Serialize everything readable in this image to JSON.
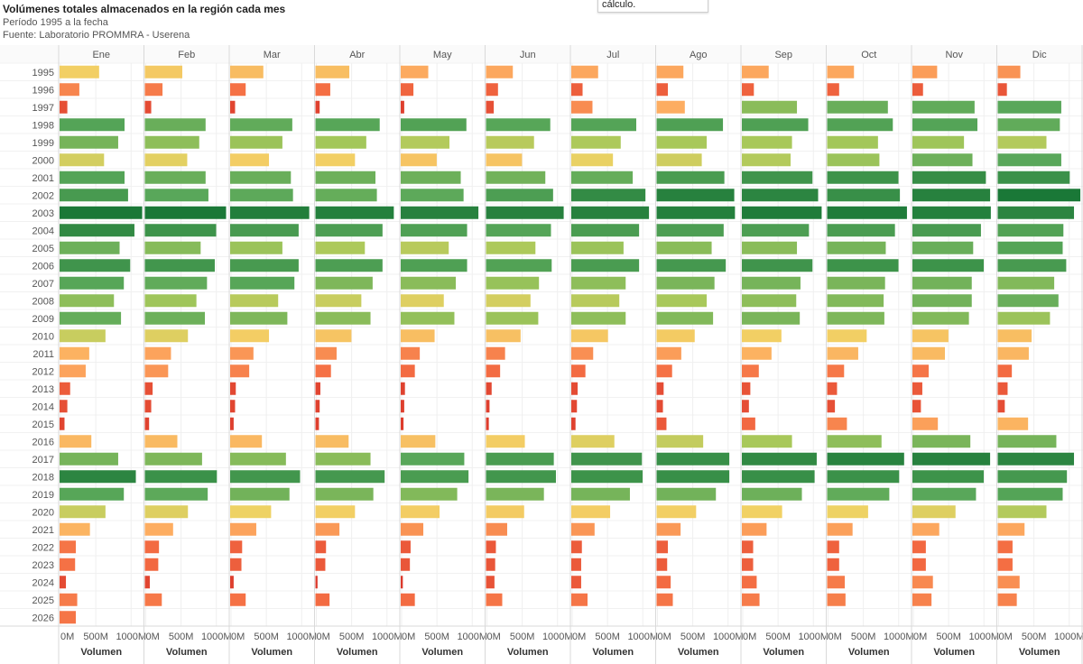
{
  "header": {
    "title": "Volúmenes totales almacenados en la región cada mes",
    "subtitle": "Período 1995 a la fecha",
    "source": "Fuente: Laboratorio PROMMRA - Userena"
  },
  "tooltip": {
    "text": "cálculo."
  },
  "chart_data": {
    "type": "bar",
    "orientation": "horizontal",
    "facet_by": "month",
    "months": [
      "Ene",
      "Feb",
      "Mar",
      "Abr",
      "May",
      "Jun",
      "Jul",
      "Ago",
      "Sep",
      "Oct",
      "Nov",
      "Dic"
    ],
    "years": [
      "1995",
      "1996",
      "1997",
      "1998",
      "1999",
      "2000",
      "2001",
      "2002",
      "2003",
      "2004",
      "2005",
      "2006",
      "2007",
      "2008",
      "2009",
      "2010",
      "2011",
      "2012",
      "2013",
      "2014",
      "2015",
      "2016",
      "2017",
      "2018",
      "2019",
      "2020",
      "2021",
      "2022",
      "2023",
      "2024",
      "2025",
      "2026"
    ],
    "xlabel": "Volumen",
    "xticks": [
      "0M",
      "500M",
      "1000M"
    ],
    "xlim": [
      0,
      1150
    ],
    "values": [
      [
        560,
        530,
        470,
        480,
        390,
        380,
        380,
        380,
        380,
        380,
        350,
        320
      ],
      [
        280,
        250,
        220,
        210,
        180,
        170,
        160,
        160,
        170,
        170,
        150,
        130
      ],
      [
        110,
        90,
        70,
        60,
        50,
        110,
        300,
        400,
        780,
        860,
        880,
        900
      ],
      [
        920,
        860,
        880,
        910,
        930,
        910,
        920,
        940,
        940,
        930,
        920,
        880
      ],
      [
        830,
        770,
        740,
        720,
        690,
        680,
        700,
        710,
        710,
        720,
        730,
        690
      ],
      [
        630,
        600,
        550,
        560,
        510,
        510,
        590,
        640,
        690,
        740,
        850,
        900
      ],
      [
        920,
        860,
        860,
        850,
        850,
        840,
        870,
        960,
        1000,
        1010,
        1040,
        1020
      ],
      [
        970,
        900,
        890,
        870,
        890,
        950,
        1050,
        1100,
        1080,
        1030,
        1100,
        1170
      ],
      [
        1170,
        1150,
        1120,
        1110,
        1100,
        1100,
        1100,
        1110,
        1130,
        1130,
        1110,
        1080
      ],
      [
        1060,
        1010,
        970,
        950,
        940,
        920,
        960,
        950,
        950,
        960,
        970,
        930
      ],
      [
        850,
        790,
        740,
        700,
        680,
        700,
        740,
        780,
        780,
        830,
        860,
        920
      ],
      [
        1000,
        990,
        970,
        950,
        940,
        930,
        960,
        980,
        1000,
        1010,
        1010,
        970
      ],
      [
        910,
        880,
        910,
        810,
        780,
        750,
        770,
        820,
        830,
        820,
        840,
        800
      ],
      [
        770,
        730,
        680,
        650,
        610,
        630,
        680,
        710,
        770,
        800,
        840,
        860
      ],
      [
        870,
        850,
        810,
        780,
        760,
        740,
        770,
        800,
        820,
        810,
        800,
        740
      ],
      [
        650,
        610,
        550,
        510,
        480,
        490,
        520,
        540,
        560,
        560,
        510,
        480
      ],
      [
        420,
        370,
        330,
        300,
        270,
        270,
        310,
        350,
        420,
        440,
        460,
        440
      ],
      [
        370,
        330,
        270,
        220,
        200,
        200,
        200,
        220,
        240,
        240,
        230,
        200
      ],
      [
        150,
        110,
        80,
        70,
        60,
        80,
        90,
        100,
        120,
        140,
        140,
        140
      ],
      [
        110,
        90,
        70,
        60,
        50,
        50,
        80,
        90,
        100,
        110,
        120,
        100
      ],
      [
        70,
        60,
        50,
        50,
        40,
        40,
        60,
        140,
        190,
        280,
        360,
        430
      ],
      [
        450,
        460,
        450,
        470,
        490,
        550,
        610,
        660,
        710,
        770,
        820,
        830
      ],
      [
        830,
        810,
        790,
        780,
        900,
        960,
        1000,
        1030,
        1060,
        1090,
        1100,
        1080
      ],
      [
        1080,
        1020,
        990,
        980,
        960,
        990,
        1010,
        1030,
        1030,
        1020,
        1010,
        980
      ],
      [
        910,
        890,
        840,
        820,
        800,
        820,
        830,
        840,
        850,
        880,
        900,
        920
      ],
      [
        650,
        610,
        580,
        560,
        550,
        540,
        550,
        560,
        570,
        580,
        610,
        690
      ],
      [
        430,
        400,
        370,
        340,
        320,
        300,
        330,
        340,
        350,
        360,
        380,
        380
      ],
      [
        230,
        200,
        170,
        150,
        140,
        140,
        150,
        160,
        160,
        170,
        190,
        210
      ],
      [
        220,
        190,
        160,
        140,
        130,
        130,
        140,
        150,
        160,
        170,
        190,
        210
      ],
      [
        90,
        70,
        50,
        30,
        30,
        120,
        140,
        200,
        210,
        250,
        290,
        310
      ],
      [
        250,
        240,
        220,
        200,
        200,
        230,
        230,
        230,
        250,
        260,
        270,
        270
      ],
      [
        230,
        null,
        null,
        null,
        null,
        null,
        null,
        null,
        null,
        null,
        null,
        null
      ]
    ],
    "color_scale": {
      "type": "sequential",
      "low": "#d73027",
      "mid": "#fdae61",
      "high": "#1a7837"
    }
  }
}
